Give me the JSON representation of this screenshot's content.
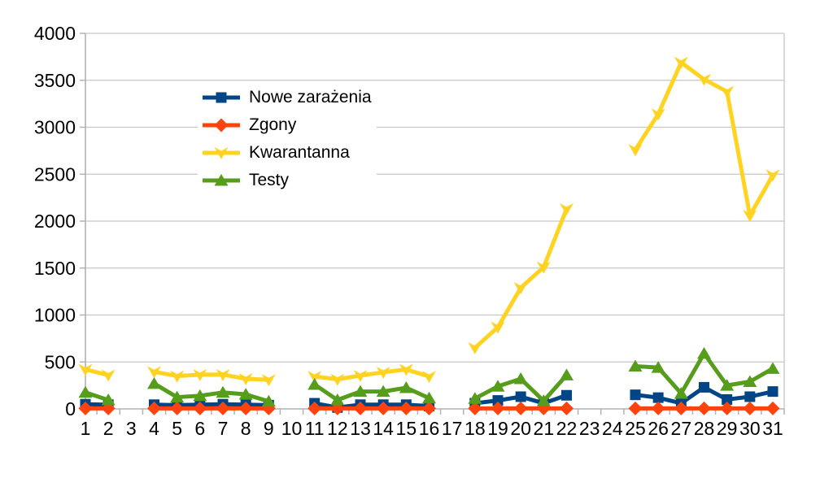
{
  "chart_data": {
    "type": "line",
    "title": "",
    "xlabel": "",
    "ylabel": "",
    "x_categories": [
      "1",
      "2",
      "3",
      "4",
      "5",
      "6",
      "7",
      "8",
      "9",
      "10",
      "11",
      "12",
      "13",
      "14",
      "15",
      "16",
      "17",
      "18",
      "19",
      "20",
      "21",
      "22",
      "23",
      "24",
      "25",
      "26",
      "27",
      "28",
      "29",
      "30",
      "31"
    ],
    "y_axis": {
      "min": 0,
      "max": 4000,
      "tick_step": 500,
      "ticks": [
        0,
        500,
        1000,
        1500,
        2000,
        2500,
        3000,
        3500,
        4000
      ]
    },
    "grid": "horizontal",
    "legend_position": "top-left-inside",
    "missing_x": [
      "3",
      "10",
      "17",
      "23",
      "24"
    ],
    "colors": {
      "grid": "#c6c6c6",
      "axis": "#b3b3b3",
      "text": "#000000",
      "background": "#ffffff"
    },
    "series": [
      {
        "name": "Nowe zarażenia",
        "color": "#004586",
        "marker": "square",
        "values": [
          50,
          45,
          null,
          45,
          40,
          45,
          50,
          45,
          40,
          null,
          60,
          15,
          45,
          45,
          45,
          30,
          null,
          60,
          90,
          130,
          60,
          145,
          null,
          null,
          150,
          120,
          60,
          230,
          100,
          130,
          185
        ]
      },
      {
        "name": "Zgony",
        "color": "#ff420e",
        "marker": "diamond",
        "values": [
          5,
          5,
          null,
          5,
          5,
          5,
          5,
          5,
          5,
          null,
          5,
          5,
          5,
          5,
          5,
          5,
          null,
          5,
          5,
          5,
          5,
          5,
          null,
          null,
          5,
          5,
          5,
          5,
          5,
          5,
          5
        ]
      },
      {
        "name": "Kwarantanna",
        "color": "#ffd320",
        "marker": "arrow-down",
        "values": [
          420,
          360,
          null,
          395,
          350,
          365,
          365,
          320,
          310,
          null,
          345,
          315,
          355,
          390,
          420,
          345,
          null,
          650,
          870,
          1290,
          1510,
          2130,
          null,
          null,
          2760,
          3140,
          3690,
          3510,
          3380,
          2060,
          2490
        ]
      },
      {
        "name": "Testy",
        "color": "#579d1c",
        "marker": "triangle-up",
        "values": [
          175,
          95,
          null,
          270,
          125,
          140,
          175,
          155,
          80,
          null,
          260,
          95,
          185,
          185,
          225,
          115,
          null,
          110,
          240,
          320,
          85,
          360,
          null,
          null,
          455,
          440,
          165,
          590,
          250,
          290,
          430
        ]
      }
    ]
  }
}
